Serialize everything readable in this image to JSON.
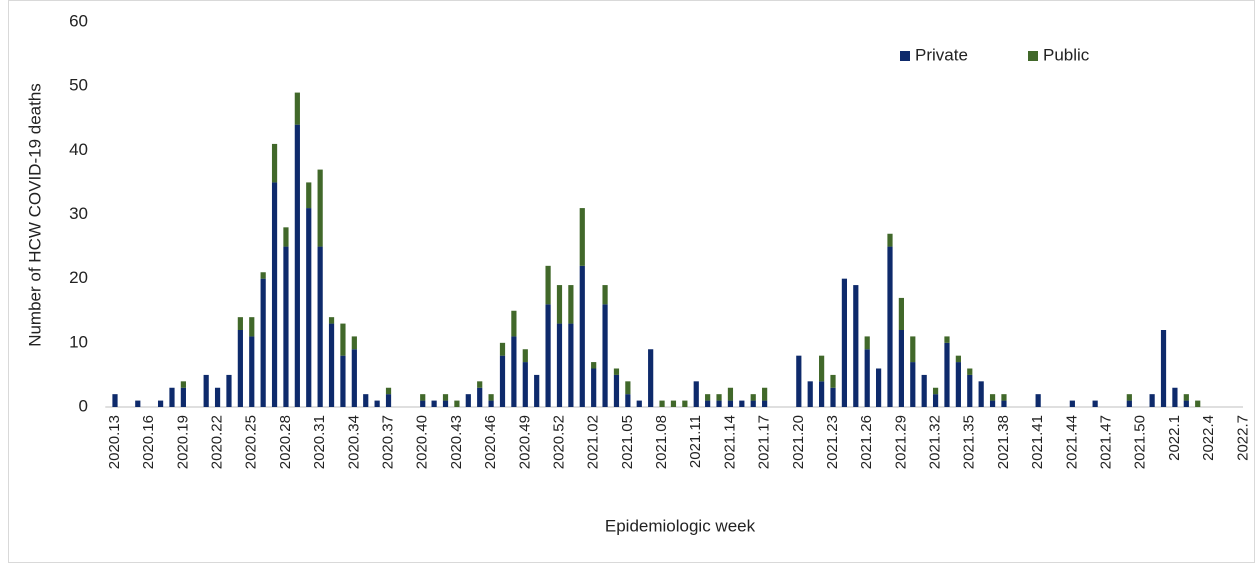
{
  "chart_data": {
    "type": "stacked_bar",
    "x_label": "Epidemiologic week",
    "y_label": "Number of HCW COVID-19 deaths",
    "categories": [
      "2020.13",
      null,
      null,
      "2020.16",
      null,
      null,
      "2020.19",
      null,
      null,
      "2020.22",
      null,
      null,
      "2020.25",
      null,
      null,
      "2020.28",
      null,
      null,
      "2020.31",
      null,
      null,
      "2020.34",
      null,
      null,
      "2020.37",
      null,
      null,
      "2020.40",
      null,
      null,
      "2020.43",
      null,
      null,
      "2020.46",
      null,
      null,
      "2020.49",
      null,
      null,
      "2020.52",
      null,
      null,
      "2021.02",
      null,
      null,
      "2021.05",
      null,
      null,
      "2021.08",
      null,
      null,
      "2021.11",
      null,
      null,
      "2021.14",
      null,
      null,
      "2021.17",
      null,
      null,
      "2021.20",
      null,
      null,
      "2021.23",
      null,
      null,
      "2021.26",
      null,
      null,
      "2021.29",
      null,
      null,
      "2021.32",
      null,
      null,
      "2021.35",
      null,
      null,
      "2021.38",
      null,
      null,
      "2021.41",
      null,
      null,
      "2021.44",
      null,
      null,
      "2021.47",
      null,
      null,
      "2021.50",
      null,
      null,
      "2022.1",
      null,
      null,
      "2022.4",
      null,
      null,
      "2022.7"
    ],
    "series": [
      {
        "name": "Private",
        "color": "#0e2a6b",
        "values": [
          2,
          0,
          1,
          0,
          1,
          3,
          3,
          0,
          5,
          3,
          5,
          12,
          11,
          20,
          35,
          25,
          44,
          31,
          25,
          13,
          8,
          9,
          2,
          1,
          2,
          0,
          0,
          1,
          1,
          1,
          0,
          2,
          3,
          1,
          8,
          11,
          7,
          5,
          16,
          13,
          13,
          22,
          6,
          16,
          5,
          2,
          1,
          9,
          0,
          0,
          0,
          4,
          1,
          1,
          1,
          1,
          1,
          1,
          0,
          0,
          8,
          4,
          4,
          3,
          20,
          19,
          9,
          6,
          25,
          12,
          7,
          5,
          2,
          10,
          7,
          5,
          4,
          1,
          1,
          0,
          0,
          2,
          0,
          0,
          1,
          0,
          1,
          0,
          0,
          1,
          0,
          2,
          12,
          3,
          1,
          0,
          0,
          0,
          0,
          0
        ]
      },
      {
        "name": "Public",
        "color": "#41682a",
        "values": [
          0,
          0,
          0,
          0,
          0,
          0,
          1,
          0,
          0,
          0,
          0,
          2,
          3,
          1,
          6,
          3,
          5,
          4,
          12,
          1,
          5,
          2,
          0,
          0,
          1,
          0,
          0,
          1,
          0,
          1,
          1,
          0,
          1,
          1,
          2,
          4,
          2,
          0,
          6,
          6,
          6,
          9,
          1,
          3,
          1,
          2,
          0,
          0,
          1,
          1,
          1,
          0,
          1,
          1,
          2,
          0,
          1,
          2,
          0,
          0,
          0,
          0,
          4,
          2,
          0,
          0,
          2,
          0,
          2,
          5,
          4,
          0,
          1,
          1,
          1,
          1,
          0,
          1,
          1,
          0,
          0,
          0,
          0,
          0,
          0,
          0,
          0,
          0,
          0,
          1,
          0,
          0,
          0,
          0,
          1,
          1,
          0,
          0,
          0,
          0
        ]
      }
    ],
    "ylim": [
      0,
      60
    ],
    "yticks": [
      0,
      10,
      20,
      30,
      40,
      50,
      60
    ],
    "grid": false,
    "legend": "top-right"
  }
}
